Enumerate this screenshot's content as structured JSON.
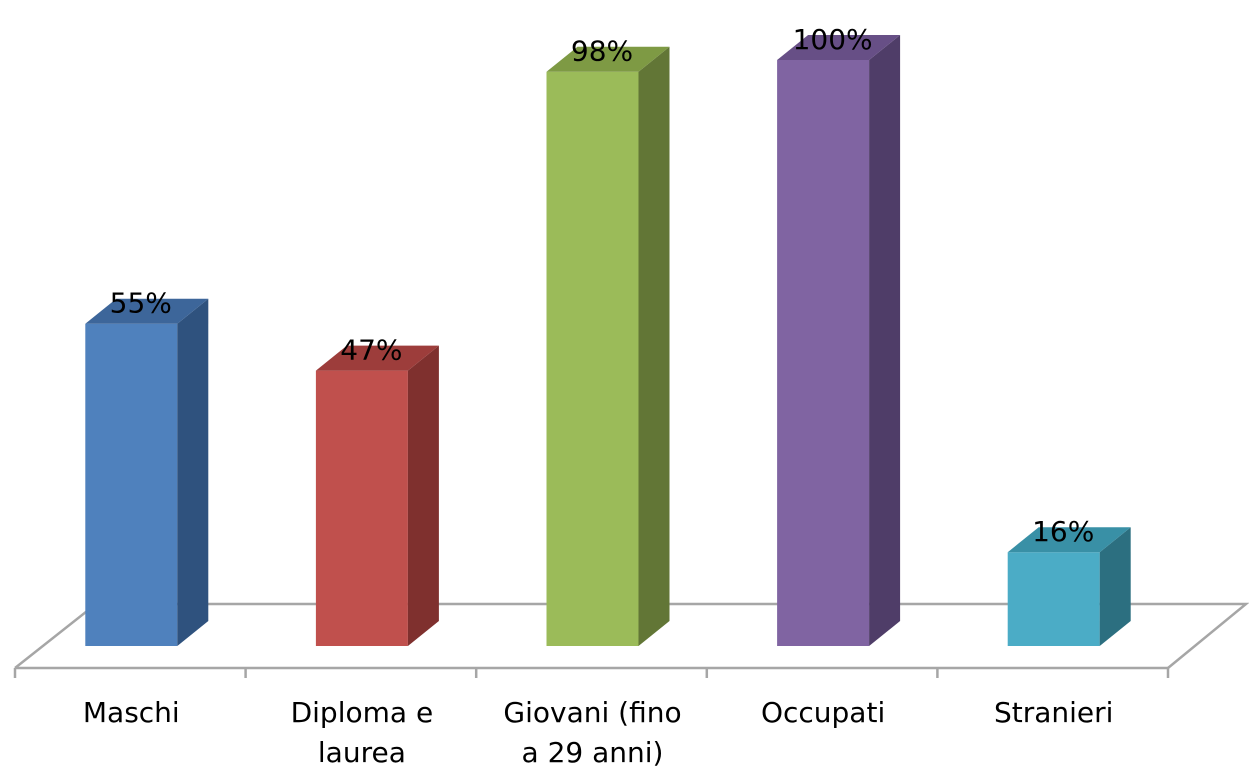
{
  "chart_data": {
    "type": "bar",
    "style": "3d-column",
    "categories": [
      [
        "Maschi"
      ],
      [
        "Diploma e",
        "laurea"
      ],
      [
        "Giovani (fino",
        "a 29 anni)"
      ],
      [
        "Occupati"
      ],
      [
        "Stranieri"
      ]
    ],
    "values": [
      55,
      47,
      98,
      100,
      16
    ],
    "value_labels": [
      "55%",
      "47%",
      "98%",
      "100%",
      "16%"
    ],
    "ylim": [
      0,
      100
    ],
    "grid": false,
    "legend": "none",
    "colors": {
      "front": [
        "#4f81bd",
        "#c0504d",
        "#9bbb59",
        "#8064a2",
        "#4bacc6"
      ],
      "side": [
        "#2f527e",
        "#7f302e",
        "#627636",
        "#4f3d68",
        "#2c6f80"
      ],
      "top": [
        "#3d669a",
        "#9d3d3b",
        "#7e9a44",
        "#674f86",
        "#3990a6"
      ]
    }
  }
}
